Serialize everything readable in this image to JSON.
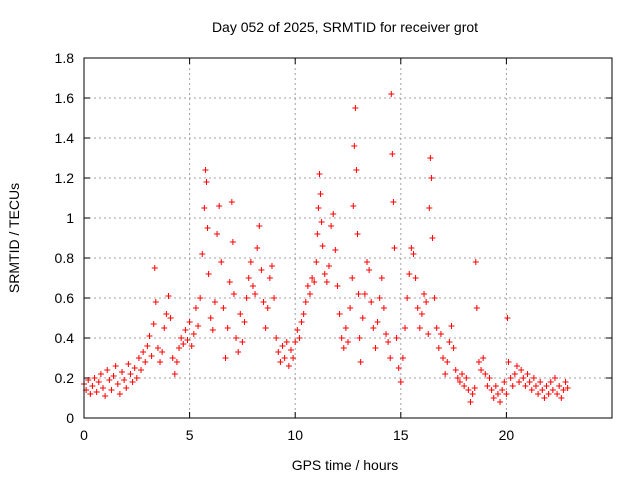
{
  "chart_data": {
    "type": "scatter",
    "title": "Day 052 of 2025, SRMTID for receiver grot",
    "xlabel": "GPS time / hours",
    "ylabel": "SRMTID / TECUs",
    "xlim": [
      0,
      25
    ],
    "ylim": [
      0,
      1.8
    ],
    "xticks": [
      0,
      5,
      10,
      15,
      20
    ],
    "xtick_labels": [
      "0",
      "5",
      "10",
      "15",
      "20"
    ],
    "yticks": [
      0,
      0.2,
      0.4,
      0.6,
      0.8,
      1.0,
      1.2,
      1.4,
      1.6,
      1.8
    ],
    "ytick_labels": [
      "0",
      "0.2",
      "0.4",
      "0.6",
      "0.8",
      "1",
      "1.2",
      "1.4",
      "1.6",
      "1.8"
    ],
    "grid": true,
    "marker": "+",
    "color": "#ff0000",
    "series": [
      {
        "name": "SRMTID",
        "points": [
          [
            0.0,
            0.17
          ],
          [
            0.1,
            0.14
          ],
          [
            0.2,
            0.19
          ],
          [
            0.3,
            0.12
          ],
          [
            0.4,
            0.16
          ],
          [
            0.5,
            0.2
          ],
          [
            0.6,
            0.13
          ],
          [
            0.7,
            0.18
          ],
          [
            0.8,
            0.22
          ],
          [
            0.9,
            0.15
          ],
          [
            1.0,
            0.11
          ],
          [
            1.1,
            0.24
          ],
          [
            1.2,
            0.19
          ],
          [
            1.3,
            0.14
          ],
          [
            1.4,
            0.21
          ],
          [
            1.5,
            0.26
          ],
          [
            1.6,
            0.17
          ],
          [
            1.7,
            0.12
          ],
          [
            1.8,
            0.23
          ],
          [
            1.9,
            0.19
          ],
          [
            2.0,
            0.15
          ],
          [
            2.1,
            0.27
          ],
          [
            2.2,
            0.22
          ],
          [
            2.3,
            0.18
          ],
          [
            2.4,
            0.25
          ],
          [
            2.5,
            0.2
          ],
          [
            2.6,
            0.3
          ],
          [
            2.7,
            0.24
          ],
          [
            2.8,
            0.33
          ],
          [
            2.9,
            0.28
          ],
          [
            3.0,
            0.36
          ],
          [
            3.1,
            0.41
          ],
          [
            3.2,
            0.31
          ],
          [
            3.3,
            0.47
          ],
          [
            3.35,
            0.75
          ],
          [
            3.4,
            0.58
          ],
          [
            3.5,
            0.35
          ],
          [
            3.6,
            0.28
          ],
          [
            3.7,
            0.33
          ],
          [
            3.8,
            0.45
          ],
          [
            3.9,
            0.52
          ],
          [
            4.0,
            0.61
          ],
          [
            4.1,
            0.5
          ],
          [
            4.2,
            0.3
          ],
          [
            4.3,
            0.22
          ],
          [
            4.4,
            0.28
          ],
          [
            4.5,
            0.35
          ],
          [
            4.6,
            0.4
          ],
          [
            4.7,
            0.37
          ],
          [
            4.8,
            0.44
          ],
          [
            4.9,
            0.39
          ],
          [
            5.0,
            0.48
          ],
          [
            5.1,
            0.36
          ],
          [
            5.2,
            0.42
          ],
          [
            5.3,
            0.55
          ],
          [
            5.4,
            0.46
          ],
          [
            5.5,
            0.6
          ],
          [
            5.6,
            0.82
          ],
          [
            5.7,
            1.05
          ],
          [
            5.75,
            1.24
          ],
          [
            5.8,
            1.18
          ],
          [
            5.85,
            0.95
          ],
          [
            5.9,
            0.72
          ],
          [
            6.0,
            0.5
          ],
          [
            6.1,
            0.44
          ],
          [
            6.2,
            0.58
          ],
          [
            6.3,
            0.92
          ],
          [
            6.4,
            1.06
          ],
          [
            6.5,
            0.78
          ],
          [
            6.6,
            0.55
          ],
          [
            6.7,
            0.3
          ],
          [
            6.8,
            0.45
          ],
          [
            6.9,
            0.68
          ],
          [
            7.0,
            1.08
          ],
          [
            7.05,
            0.88
          ],
          [
            7.1,
            0.62
          ],
          [
            7.2,
            0.4
          ],
          [
            7.3,
            0.33
          ],
          [
            7.4,
            0.52
          ],
          [
            7.5,
            0.38
          ],
          [
            7.6,
            0.48
          ],
          [
            7.7,
            0.6
          ],
          [
            7.8,
            0.7
          ],
          [
            7.9,
            0.78
          ],
          [
            8.0,
            0.66
          ],
          [
            8.1,
            0.62
          ],
          [
            8.2,
            0.85
          ],
          [
            8.3,
            0.96
          ],
          [
            8.4,
            0.74
          ],
          [
            8.5,
            0.58
          ],
          [
            8.6,
            0.45
          ],
          [
            8.7,
            0.55
          ],
          [
            8.8,
            0.7
          ],
          [
            8.9,
            0.76
          ],
          [
            9.0,
            0.6
          ],
          [
            9.1,
            0.4
          ],
          [
            9.2,
            0.33
          ],
          [
            9.3,
            0.28
          ],
          [
            9.4,
            0.36
          ],
          [
            9.5,
            0.3
          ],
          [
            9.6,
            0.38
          ],
          [
            9.7,
            0.26
          ],
          [
            9.8,
            0.34
          ],
          [
            9.9,
            0.3
          ],
          [
            10.0,
            0.38
          ],
          [
            10.1,
            0.44
          ],
          [
            10.2,
            0.4
          ],
          [
            10.3,
            0.48
          ],
          [
            10.4,
            0.52
          ],
          [
            10.5,
            0.58
          ],
          [
            10.6,
            0.66
          ],
          [
            10.7,
            0.62
          ],
          [
            10.8,
            0.7
          ],
          [
            10.9,
            0.68
          ],
          [
            11.0,
            0.78
          ],
          [
            11.05,
            0.92
          ],
          [
            11.1,
            1.05
          ],
          [
            11.15,
            1.22
          ],
          [
            11.2,
            1.12
          ],
          [
            11.25,
            0.98
          ],
          [
            11.3,
            0.86
          ],
          [
            11.4,
            0.72
          ],
          [
            11.5,
            0.68
          ],
          [
            11.6,
            0.76
          ],
          [
            11.7,
            0.96
          ],
          [
            11.8,
            1.02
          ],
          [
            11.9,
            0.84
          ],
          [
            12.0,
            0.66
          ],
          [
            12.1,
            0.52
          ],
          [
            12.2,
            0.4
          ],
          [
            12.3,
            0.35
          ],
          [
            12.4,
            0.45
          ],
          [
            12.5,
            0.38
          ],
          [
            12.6,
            0.55
          ],
          [
            12.7,
            0.7
          ],
          [
            12.75,
            1.06
          ],
          [
            12.8,
            1.36
          ],
          [
            12.85,
            1.55
          ],
          [
            12.9,
            1.24
          ],
          [
            12.95,
            0.92
          ],
          [
            13.0,
            0.62
          ],
          [
            13.05,
            0.4
          ],
          [
            13.1,
            0.28
          ],
          [
            13.2,
            0.5
          ],
          [
            13.3,
            0.62
          ],
          [
            13.4,
            0.78
          ],
          [
            13.5,
            0.74
          ],
          [
            13.6,
            0.58
          ],
          [
            13.7,
            0.45
          ],
          [
            13.8,
            0.35
          ],
          [
            13.9,
            0.48
          ],
          [
            14.0,
            0.6
          ],
          [
            14.1,
            0.7
          ],
          [
            14.2,
            0.55
          ],
          [
            14.3,
            0.42
          ],
          [
            14.4,
            0.38
          ],
          [
            14.5,
            0.3
          ],
          [
            14.55,
            1.62
          ],
          [
            14.6,
            1.32
          ],
          [
            14.65,
            1.08
          ],
          [
            14.7,
            0.85
          ],
          [
            14.8,
            0.4
          ],
          [
            14.9,
            0.25
          ],
          [
            15.0,
            0.18
          ],
          [
            15.1,
            0.3
          ],
          [
            15.2,
            0.45
          ],
          [
            15.3,
            0.6
          ],
          [
            15.4,
            0.72
          ],
          [
            15.5,
            0.85
          ],
          [
            15.6,
            0.82
          ],
          [
            15.7,
            0.7
          ],
          [
            15.8,
            0.55
          ],
          [
            15.9,
            0.45
          ],
          [
            16.0,
            0.52
          ],
          [
            16.1,
            0.62
          ],
          [
            16.2,
            0.58
          ],
          [
            16.3,
            0.42
          ],
          [
            16.35,
            1.05
          ],
          [
            16.4,
            1.3
          ],
          [
            16.45,
            1.2
          ],
          [
            16.5,
            0.9
          ],
          [
            16.6,
            0.6
          ],
          [
            16.7,
            0.45
          ],
          [
            16.8,
            0.35
          ],
          [
            16.9,
            0.42
          ],
          [
            17.0,
            0.3
          ],
          [
            17.1,
            0.22
          ],
          [
            17.2,
            0.28
          ],
          [
            17.3,
            0.38
          ],
          [
            17.4,
            0.46
          ],
          [
            17.5,
            0.35
          ],
          [
            17.6,
            0.24
          ],
          [
            17.7,
            0.2
          ],
          [
            17.8,
            0.18
          ],
          [
            17.9,
            0.22
          ],
          [
            18.0,
            0.16
          ],
          [
            18.1,
            0.2
          ],
          [
            18.2,
            0.14
          ],
          [
            18.3,
            0.08
          ],
          [
            18.4,
            0.12
          ],
          [
            18.5,
            0.15
          ],
          [
            18.55,
            0.78
          ],
          [
            18.6,
            0.55
          ],
          [
            18.7,
            0.28
          ],
          [
            18.8,
            0.24
          ],
          [
            18.9,
            0.3
          ],
          [
            19.0,
            0.22
          ],
          [
            19.1,
            0.16
          ],
          [
            19.2,
            0.2
          ],
          [
            19.3,
            0.14
          ],
          [
            19.4,
            0.1
          ],
          [
            19.5,
            0.16
          ],
          [
            19.6,
            0.12
          ],
          [
            19.7,
            0.08
          ],
          [
            19.8,
            0.14
          ],
          [
            19.9,
            0.18
          ],
          [
            20.0,
            0.12
          ],
          [
            20.05,
            0.5
          ],
          [
            20.1,
            0.28
          ],
          [
            20.2,
            0.2
          ],
          [
            20.3,
            0.16
          ],
          [
            20.4,
            0.22
          ],
          [
            20.5,
            0.26
          ],
          [
            20.6,
            0.18
          ],
          [
            20.7,
            0.24
          ],
          [
            20.8,
            0.2
          ],
          [
            20.9,
            0.16
          ],
          [
            21.0,
            0.22
          ],
          [
            21.1,
            0.18
          ],
          [
            21.2,
            0.14
          ],
          [
            21.3,
            0.2
          ],
          [
            21.4,
            0.16
          ],
          [
            21.5,
            0.12
          ],
          [
            21.6,
            0.18
          ],
          [
            21.7,
            0.14
          ],
          [
            21.8,
            0.1
          ],
          [
            21.9,
            0.16
          ],
          [
            22.0,
            0.12
          ],
          [
            22.1,
            0.18
          ],
          [
            22.2,
            0.14
          ],
          [
            22.3,
            0.2
          ],
          [
            22.4,
            0.12
          ],
          [
            22.5,
            0.16
          ],
          [
            22.6,
            0.1
          ],
          [
            22.7,
            0.14
          ],
          [
            22.8,
            0.18
          ],
          [
            22.9,
            0.15
          ]
        ]
      }
    ]
  }
}
